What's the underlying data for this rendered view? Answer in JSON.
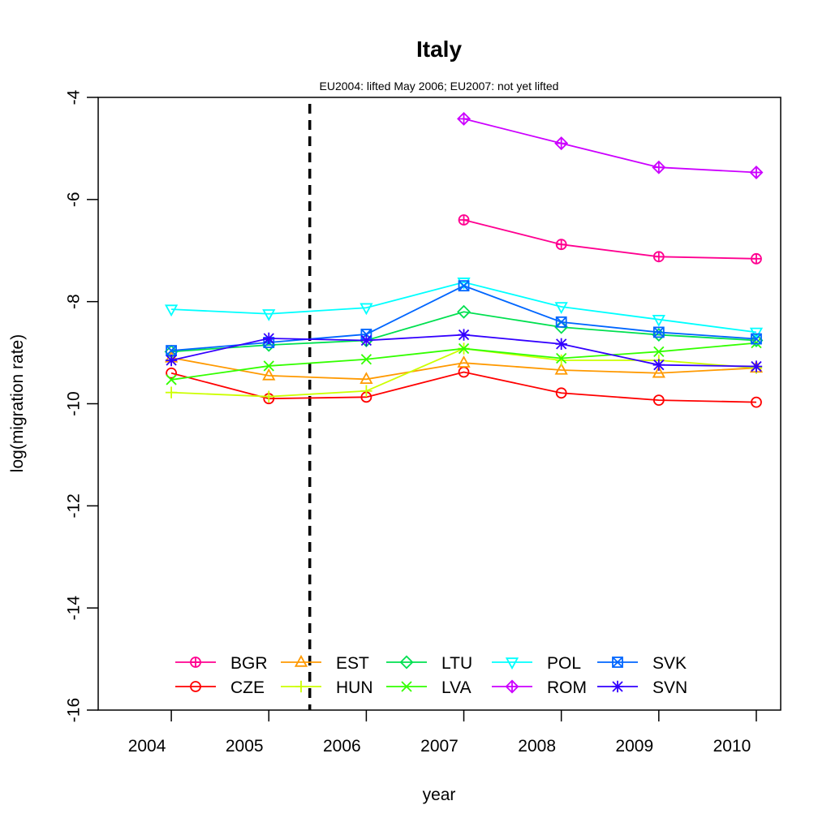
{
  "chart_data": {
    "type": "line",
    "title": "Italy",
    "subtitle": "EU2004: lifted May 2006; EU2007: not yet lifted",
    "xlabel": "year",
    "ylabel": "log(migration rate)",
    "x_ticks": [
      "2004",
      "2005",
      "2006",
      "2007",
      "2008",
      "2009",
      "2010"
    ],
    "xlim": [
      2003.25,
      2010.25
    ],
    "x": [
      2004,
      2005,
      2006,
      2007,
      2008,
      2009,
      2010
    ],
    "ylim": [
      -16,
      -4
    ],
    "y_ticks": [
      -4,
      -6,
      -8,
      -10,
      -12,
      -14,
      -16
    ],
    "vline_x": 2005.42,
    "vline_style": "dashed",
    "grid": false,
    "legend_position": "bottom",
    "series": [
      {
        "name": "BGR",
        "color": "#ff0090",
        "marker": "circle-plus",
        "values": [
          null,
          null,
          null,
          -6.4,
          -6.88,
          -7.12,
          -7.16
        ]
      },
      {
        "name": "CZE",
        "color": "#ff0000",
        "marker": "circle",
        "values": [
          -9.4,
          -9.9,
          -9.87,
          -9.38,
          -9.79,
          -9.93,
          -9.97
        ]
      },
      {
        "name": "EST",
        "color": "#ff9900",
        "marker": "triangle",
        "values": [
          -9.1,
          -9.45,
          -9.52,
          -9.2,
          -9.34,
          -9.4,
          -9.3
        ]
      },
      {
        "name": "HUN",
        "color": "#ccff00",
        "marker": "plus",
        "values": [
          -9.78,
          -9.86,
          -9.75,
          -8.92,
          -9.15,
          -9.15,
          -9.3
        ]
      },
      {
        "name": "LTU",
        "color": "#00e050",
        "marker": "diamond",
        "values": [
          -8.98,
          -8.85,
          -8.76,
          -8.2,
          -8.5,
          -8.65,
          -8.76
        ]
      },
      {
        "name": "LVA",
        "color": "#33ff00",
        "marker": "cross",
        "values": [
          -9.53,
          -9.26,
          -9.13,
          -8.92,
          -9.11,
          -8.98,
          -8.81
        ]
      },
      {
        "name": "POL",
        "color": "#00ffff",
        "marker": "triangle-down",
        "values": [
          -8.15,
          -8.24,
          -8.12,
          -7.62,
          -8.1,
          -8.35,
          -8.6
        ]
      },
      {
        "name": "ROM",
        "color": "#cc00ff",
        "marker": "diamond-plus",
        "values": [
          null,
          null,
          null,
          -4.42,
          -4.9,
          -5.37,
          -5.47
        ]
      },
      {
        "name": "SVK",
        "color": "#0066ff",
        "marker": "square-x",
        "values": [
          -8.96,
          -8.8,
          -8.64,
          -7.69,
          -8.4,
          -8.6,
          -8.73
        ]
      },
      {
        "name": "SVN",
        "color": "#3300ff",
        "marker": "star",
        "values": [
          -9.15,
          -8.72,
          -8.76,
          -8.65,
          -8.83,
          -9.24,
          -9.27
        ]
      }
    ]
  }
}
